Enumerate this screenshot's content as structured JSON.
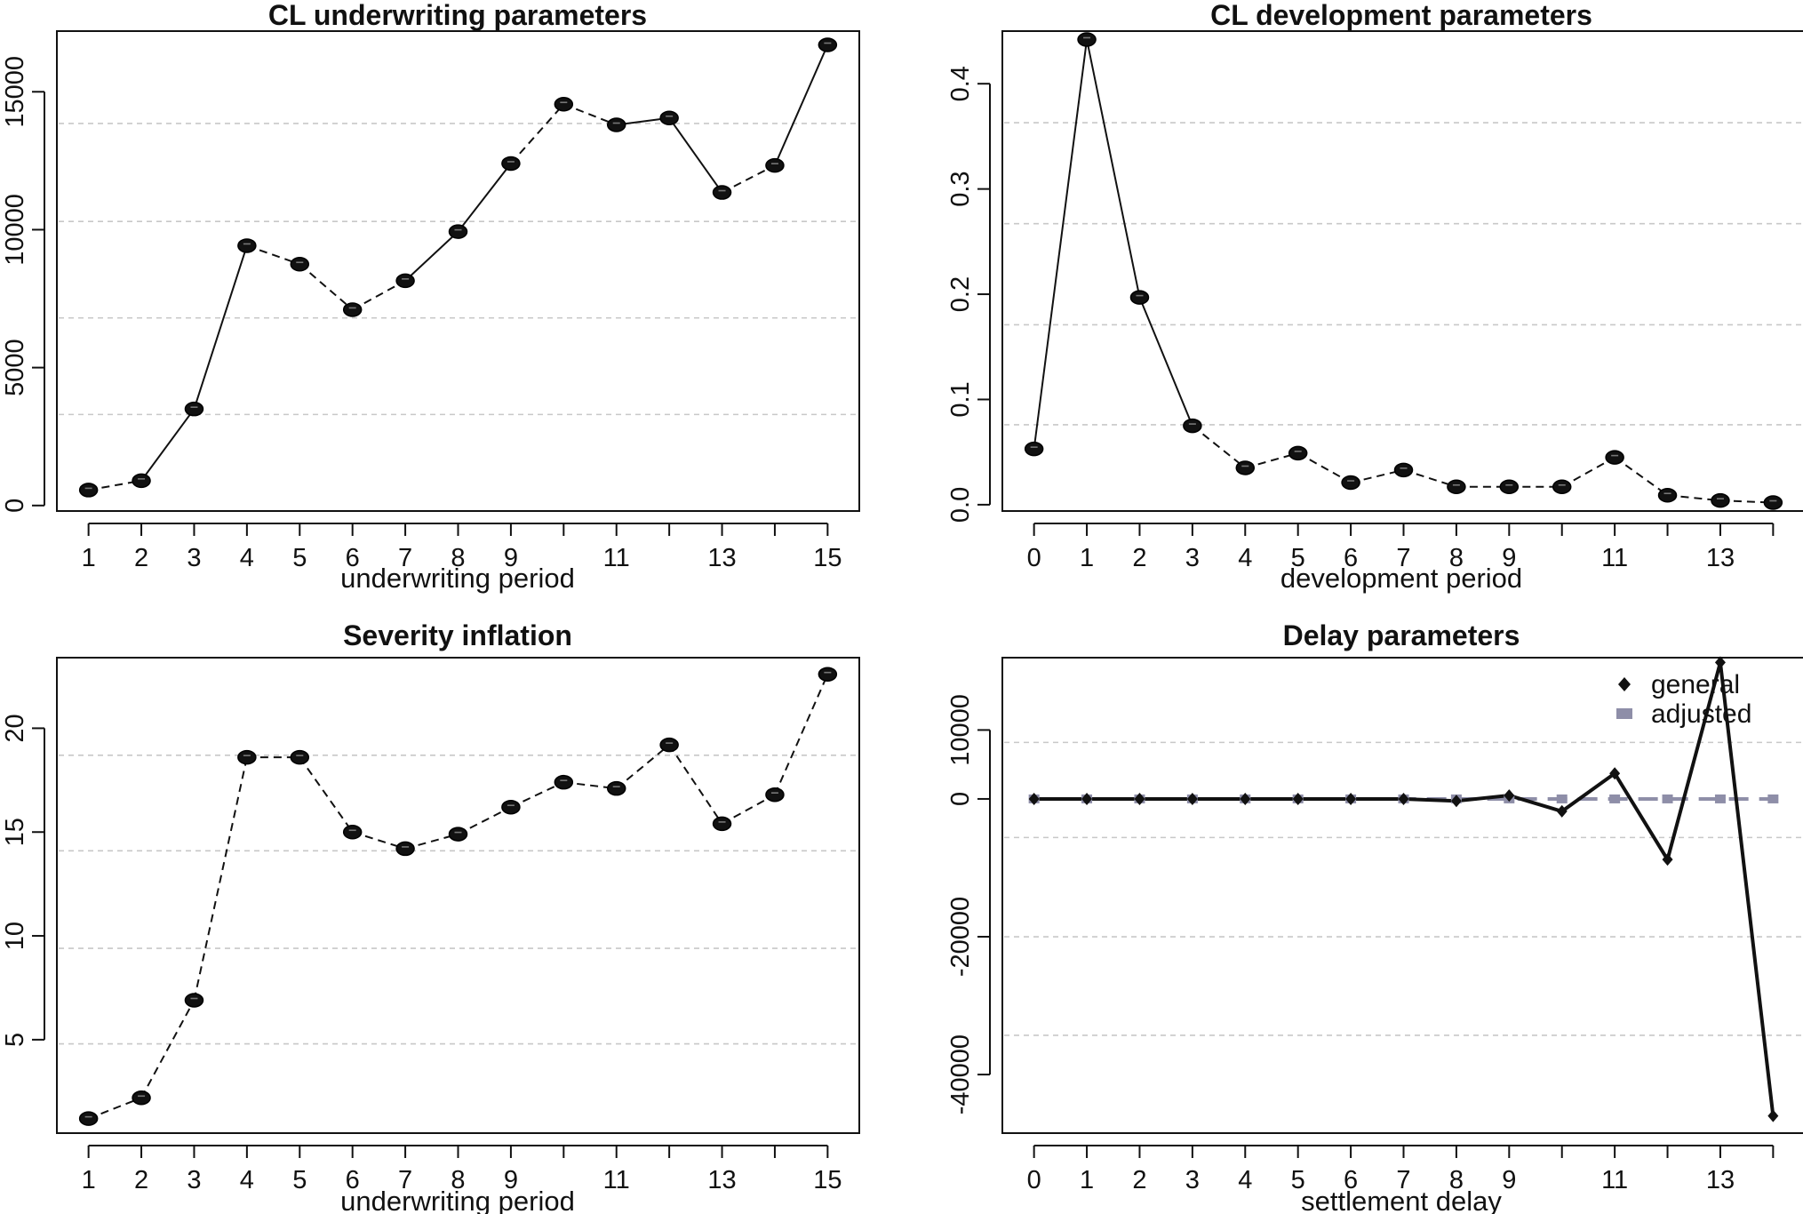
{
  "chart_data": [
    {
      "type": "line",
      "title": "CL underwriting parameters",
      "xlabel": "underwriting period",
      "ylabel": "",
      "x": [
        1,
        2,
        3,
        4,
        5,
        6,
        7,
        8,
        9,
        10,
        11,
        12,
        13,
        14,
        15
      ],
      "x_tick_labels": [
        "1",
        "2",
        "3",
        "4",
        "5",
        "6",
        "7",
        "8",
        "9",
        "11",
        "13",
        "15"
      ],
      "y_tick_labels": [
        "0",
        "5000",
        "10000",
        "15000"
      ],
      "xlim": [
        0.4,
        15.6
      ],
      "ylim": [
        -200,
        17200
      ],
      "grid": true,
      "series": [
        {
          "values": [
            560,
            900,
            3500,
            9420,
            8750,
            7100,
            8150,
            9930,
            12400,
            14550,
            13800,
            14050,
            11350,
            12330,
            16700
          ],
          "markers": true
        }
      ]
    },
    {
      "type": "line",
      "title": "CL development parameters",
      "xlabel": "development period",
      "ylabel": "",
      "x": [
        0,
        1,
        2,
        3,
        4,
        5,
        6,
        7,
        8,
        9,
        10,
        11,
        12,
        13,
        14
      ],
      "x_tick_labels": [
        "0",
        "1",
        "2",
        "3",
        "4",
        "5",
        "6",
        "7",
        "8",
        "9",
        "11",
        "13"
      ],
      "y_tick_labels": [
        "0.0",
        "0.1",
        "0.2",
        "0.3",
        "0.4"
      ],
      "xlim": [
        -0.6,
        14.6
      ],
      "ylim": [
        -0.006,
        0.45
      ],
      "grid": true,
      "series": [
        {
          "values": [
            0.053,
            0.442,
            0.197,
            0.075,
            0.035,
            0.049,
            0.021,
            0.033,
            0.017,
            0.017,
            0.017,
            0.045,
            0.009,
            0.004,
            0.002
          ],
          "markers": true
        }
      ]
    },
    {
      "type": "line",
      "title": "Severity inflation",
      "xlabel": "underwriting period",
      "ylabel": "",
      "x": [
        1,
        2,
        3,
        4,
        5,
        6,
        7,
        8,
        9,
        10,
        11,
        12,
        13,
        14,
        15
      ],
      "x_tick_labels": [
        "1",
        "2",
        "3",
        "4",
        "5",
        "6",
        "7",
        "8",
        "9",
        "11",
        "13",
        "15"
      ],
      "y_tick_labels": [
        "5",
        "10",
        "15",
        "20"
      ],
      "xlim": [
        0.4,
        15.6
      ],
      "ylim": [
        0.5,
        23.4
      ],
      "grid": true,
      "series": [
        {
          "values": [
            1.2,
            2.2,
            6.9,
            18.6,
            18.6,
            15.0,
            14.2,
            14.9,
            16.2,
            17.4,
            17.1,
            19.2,
            15.4,
            16.8,
            22.6
          ],
          "markers": true
        }
      ]
    },
    {
      "type": "line",
      "title": "Delay parameters",
      "xlabel": "settlement delay",
      "ylabel": "",
      "x": [
        0,
        1,
        2,
        3,
        4,
        5,
        6,
        7,
        8,
        9,
        10,
        11,
        12,
        13,
        14
      ],
      "x_tick_labels": [
        "0",
        "1",
        "2",
        "3",
        "4",
        "5",
        "6",
        "7",
        "8",
        "9",
        "11",
        "13"
      ],
      "y_tick_labels": [
        "-40000",
        "-20000",
        "0",
        "10000"
      ],
      "xlim": [
        -0.6,
        14.6
      ],
      "ylim": [
        -48500,
        20500
      ],
      "grid": true,
      "legend": "top-right",
      "series": [
        {
          "name": "general",
          "color": "#111111",
          "values": [
            0,
            0,
            0,
            0,
            0,
            0,
            0,
            0,
            -300,
            500,
            -1800,
            3700,
            -8800,
            19800,
            -46000
          ]
        },
        {
          "name": "adjusted",
          "color": "#8e8ea8",
          "values": [
            0,
            0,
            0,
            0,
            0,
            0,
            0,
            0,
            0,
            0,
            0,
            0,
            0,
            0,
            0
          ]
        }
      ]
    }
  ]
}
